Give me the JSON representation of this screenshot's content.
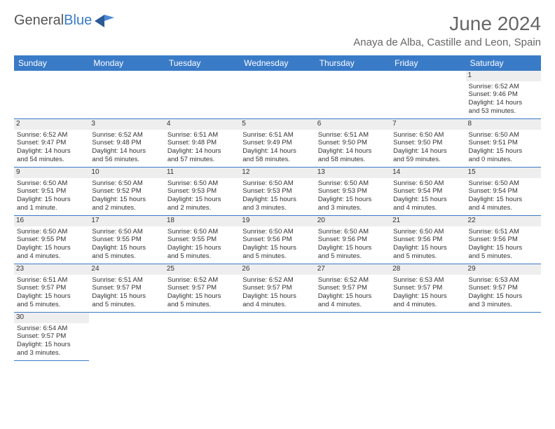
{
  "brand": {
    "name_part1": "General",
    "name_part2": "Blue"
  },
  "title": "June 2024",
  "location": "Anaya de Alba, Castille and Leon, Spain",
  "colors": {
    "header_bg": "#3a7bc8",
    "header_text": "#ffffff",
    "border": "#3a7bc8",
    "daynum_bg": "#eeeeee",
    "text": "#333333",
    "title_text": "#666666"
  },
  "day_headers": [
    "Sunday",
    "Monday",
    "Tuesday",
    "Wednesday",
    "Thursday",
    "Friday",
    "Saturday"
  ],
  "weeks": [
    [
      null,
      null,
      null,
      null,
      null,
      null,
      {
        "n": "1",
        "sunrise": "Sunrise: 6:52 AM",
        "sunset": "Sunset: 9:46 PM",
        "d1": "Daylight: 14 hours",
        "d2": "and 53 minutes."
      }
    ],
    [
      {
        "n": "2",
        "sunrise": "Sunrise: 6:52 AM",
        "sunset": "Sunset: 9:47 PM",
        "d1": "Daylight: 14 hours",
        "d2": "and 54 minutes."
      },
      {
        "n": "3",
        "sunrise": "Sunrise: 6:52 AM",
        "sunset": "Sunset: 9:48 PM",
        "d1": "Daylight: 14 hours",
        "d2": "and 56 minutes."
      },
      {
        "n": "4",
        "sunrise": "Sunrise: 6:51 AM",
        "sunset": "Sunset: 9:48 PM",
        "d1": "Daylight: 14 hours",
        "d2": "and 57 minutes."
      },
      {
        "n": "5",
        "sunrise": "Sunrise: 6:51 AM",
        "sunset": "Sunset: 9:49 PM",
        "d1": "Daylight: 14 hours",
        "d2": "and 58 minutes."
      },
      {
        "n": "6",
        "sunrise": "Sunrise: 6:51 AM",
        "sunset": "Sunset: 9:50 PM",
        "d1": "Daylight: 14 hours",
        "d2": "and 58 minutes."
      },
      {
        "n": "7",
        "sunrise": "Sunrise: 6:50 AM",
        "sunset": "Sunset: 9:50 PM",
        "d1": "Daylight: 14 hours",
        "d2": "and 59 minutes."
      },
      {
        "n": "8",
        "sunrise": "Sunrise: 6:50 AM",
        "sunset": "Sunset: 9:51 PM",
        "d1": "Daylight: 15 hours",
        "d2": "and 0 minutes."
      }
    ],
    [
      {
        "n": "9",
        "sunrise": "Sunrise: 6:50 AM",
        "sunset": "Sunset: 9:51 PM",
        "d1": "Daylight: 15 hours",
        "d2": "and 1 minute."
      },
      {
        "n": "10",
        "sunrise": "Sunrise: 6:50 AM",
        "sunset": "Sunset: 9:52 PM",
        "d1": "Daylight: 15 hours",
        "d2": "and 2 minutes."
      },
      {
        "n": "11",
        "sunrise": "Sunrise: 6:50 AM",
        "sunset": "Sunset: 9:53 PM",
        "d1": "Daylight: 15 hours",
        "d2": "and 2 minutes."
      },
      {
        "n": "12",
        "sunrise": "Sunrise: 6:50 AM",
        "sunset": "Sunset: 9:53 PM",
        "d1": "Daylight: 15 hours",
        "d2": "and 3 minutes."
      },
      {
        "n": "13",
        "sunrise": "Sunrise: 6:50 AM",
        "sunset": "Sunset: 9:53 PM",
        "d1": "Daylight: 15 hours",
        "d2": "and 3 minutes."
      },
      {
        "n": "14",
        "sunrise": "Sunrise: 6:50 AM",
        "sunset": "Sunset: 9:54 PM",
        "d1": "Daylight: 15 hours",
        "d2": "and 4 minutes."
      },
      {
        "n": "15",
        "sunrise": "Sunrise: 6:50 AM",
        "sunset": "Sunset: 9:54 PM",
        "d1": "Daylight: 15 hours",
        "d2": "and 4 minutes."
      }
    ],
    [
      {
        "n": "16",
        "sunrise": "Sunrise: 6:50 AM",
        "sunset": "Sunset: 9:55 PM",
        "d1": "Daylight: 15 hours",
        "d2": "and 4 minutes."
      },
      {
        "n": "17",
        "sunrise": "Sunrise: 6:50 AM",
        "sunset": "Sunset: 9:55 PM",
        "d1": "Daylight: 15 hours",
        "d2": "and 5 minutes."
      },
      {
        "n": "18",
        "sunrise": "Sunrise: 6:50 AM",
        "sunset": "Sunset: 9:55 PM",
        "d1": "Daylight: 15 hours",
        "d2": "and 5 minutes."
      },
      {
        "n": "19",
        "sunrise": "Sunrise: 6:50 AM",
        "sunset": "Sunset: 9:56 PM",
        "d1": "Daylight: 15 hours",
        "d2": "and 5 minutes."
      },
      {
        "n": "20",
        "sunrise": "Sunrise: 6:50 AM",
        "sunset": "Sunset: 9:56 PM",
        "d1": "Daylight: 15 hours",
        "d2": "and 5 minutes."
      },
      {
        "n": "21",
        "sunrise": "Sunrise: 6:50 AM",
        "sunset": "Sunset: 9:56 PM",
        "d1": "Daylight: 15 hours",
        "d2": "and 5 minutes."
      },
      {
        "n": "22",
        "sunrise": "Sunrise: 6:51 AM",
        "sunset": "Sunset: 9:56 PM",
        "d1": "Daylight: 15 hours",
        "d2": "and 5 minutes."
      }
    ],
    [
      {
        "n": "23",
        "sunrise": "Sunrise: 6:51 AM",
        "sunset": "Sunset: 9:57 PM",
        "d1": "Daylight: 15 hours",
        "d2": "and 5 minutes."
      },
      {
        "n": "24",
        "sunrise": "Sunrise: 6:51 AM",
        "sunset": "Sunset: 9:57 PM",
        "d1": "Daylight: 15 hours",
        "d2": "and 5 minutes."
      },
      {
        "n": "25",
        "sunrise": "Sunrise: 6:52 AM",
        "sunset": "Sunset: 9:57 PM",
        "d1": "Daylight: 15 hours",
        "d2": "and 5 minutes."
      },
      {
        "n": "26",
        "sunrise": "Sunrise: 6:52 AM",
        "sunset": "Sunset: 9:57 PM",
        "d1": "Daylight: 15 hours",
        "d2": "and 4 minutes."
      },
      {
        "n": "27",
        "sunrise": "Sunrise: 6:52 AM",
        "sunset": "Sunset: 9:57 PM",
        "d1": "Daylight: 15 hours",
        "d2": "and 4 minutes."
      },
      {
        "n": "28",
        "sunrise": "Sunrise: 6:53 AM",
        "sunset": "Sunset: 9:57 PM",
        "d1": "Daylight: 15 hours",
        "d2": "and 4 minutes."
      },
      {
        "n": "29",
        "sunrise": "Sunrise: 6:53 AM",
        "sunset": "Sunset: 9:57 PM",
        "d1": "Daylight: 15 hours",
        "d2": "and 3 minutes."
      }
    ],
    [
      {
        "n": "30",
        "sunrise": "Sunrise: 6:54 AM",
        "sunset": "Sunset: 9:57 PM",
        "d1": "Daylight: 15 hours",
        "d2": "and 3 minutes."
      },
      null,
      null,
      null,
      null,
      null,
      null
    ]
  ]
}
